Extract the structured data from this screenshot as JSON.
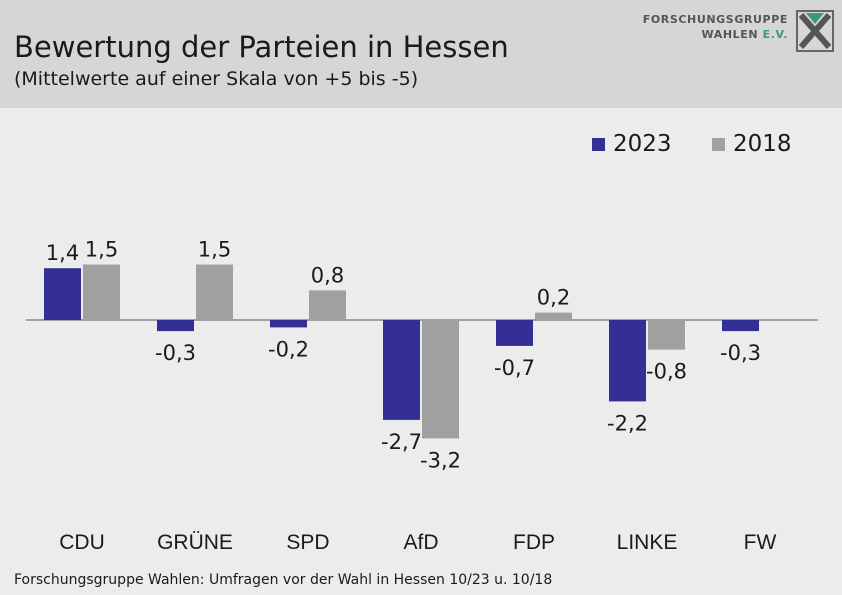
{
  "header": {
    "title": "Bewertung der Parteien in Hessen",
    "subtitle": "(Mittelwerte auf einer Skala von +5 bis -5)",
    "logo_line1": "FORSCHUNGSGRUPPE",
    "logo_line2": "WAHLEN",
    "logo_suffix": "E.V."
  },
  "source": "Forschungsgruppe Wahlen: Umfragen vor der Wahl in Hessen 10/23 u. 10/18",
  "colors": {
    "s2023": "#342f94",
    "s2018": "#a0a0a0",
    "accent": "#3a9a7a"
  },
  "chart_data": {
    "type": "bar",
    "categories": [
      "CDU",
      "GRÜNE",
      "SPD",
      "AfD",
      "FDP",
      "LINKE",
      "FW"
    ],
    "series": [
      {
        "name": "2023",
        "values": [
          1.4,
          -0.3,
          -0.2,
          -2.7,
          -0.7,
          -2.2,
          -0.3
        ],
        "labels": [
          "1,4",
          "-0,3",
          "-0,2",
          "-2,7",
          "-0,7",
          "-2,2",
          "-0,3"
        ]
      },
      {
        "name": "2018",
        "values": [
          1.5,
          1.5,
          0.8,
          -3.2,
          0.2,
          -0.8,
          null
        ],
        "labels": [
          "1,5",
          "1,5",
          "0,8",
          "-3,2",
          "0,2",
          "-0,8",
          ""
        ]
      }
    ],
    "ylim": [
      -5,
      5
    ],
    "grid": false,
    "legend": "top-right"
  }
}
